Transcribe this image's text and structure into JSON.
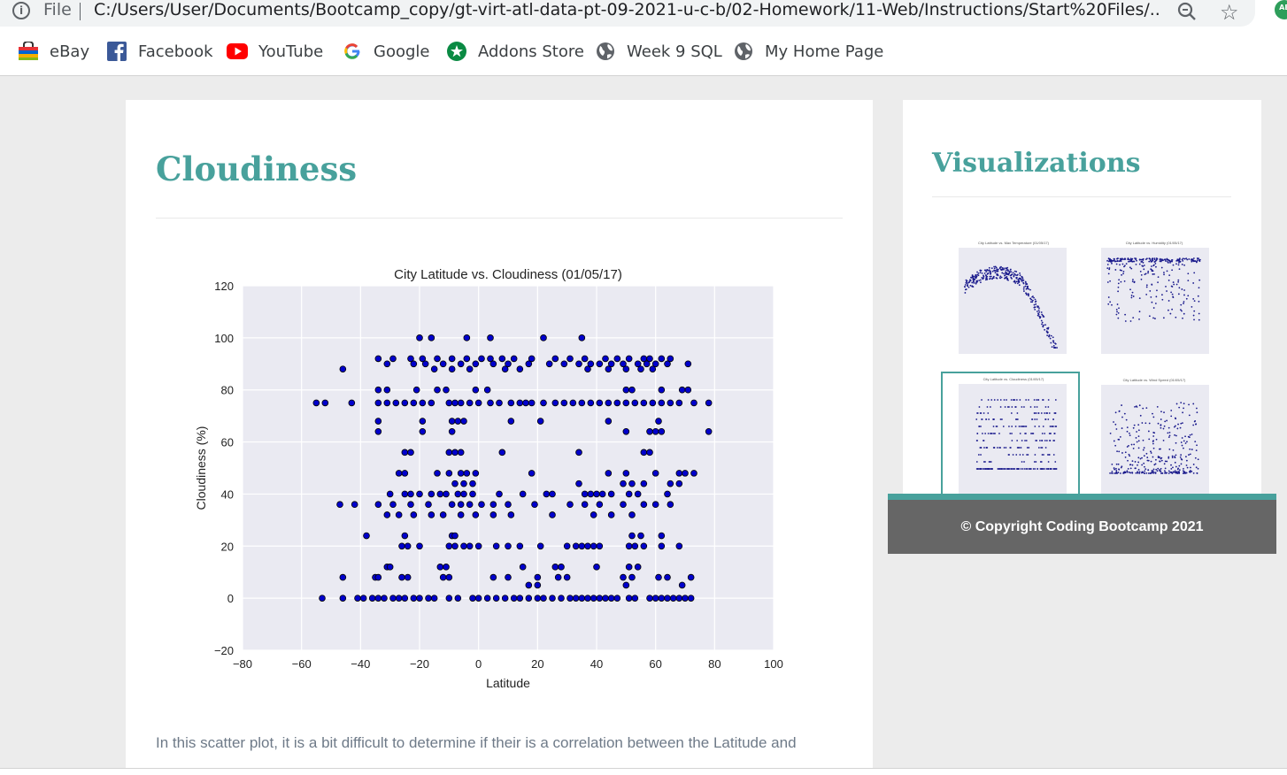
{
  "browser": {
    "file_label": "File",
    "url": "C:/Users/User/Documents/Bootcamp_copy/gt-virt-atl-data-pt-09-2021-u-c-b/02-Homework/11-Web/Instructions/Start%20Files/...",
    "extension_label": "AE",
    "info_icon": "info-icon",
    "star_icon": "star-icon",
    "zoom_icon": "zoom-icon"
  },
  "bookmarks": [
    {
      "label": "eBay",
      "icon": "ebay-icon"
    },
    {
      "label": "Facebook",
      "icon": "facebook-icon"
    },
    {
      "label": "YouTube",
      "icon": "youtube-icon"
    },
    {
      "label": "Google",
      "icon": "google-icon"
    },
    {
      "label": "Addons Store",
      "icon": "addons-icon"
    },
    {
      "label": "Week 9 SQL",
      "icon": "globe-icon"
    },
    {
      "label": "My Home Page",
      "icon": "globe-icon"
    }
  ],
  "main": {
    "title": "Cloudiness",
    "paragraph": "In this scatter plot, it is a bit difficult to determine if their is a correlation between the Latitude and"
  },
  "sidebar": {
    "title": "Visualizations",
    "thumbnails": [
      {
        "title": "City Latitude vs. Max Temperature (01/05/17)"
      },
      {
        "title": "City Latitude vs. Humidity (01/05/17)"
      },
      {
        "title": "City Latitude vs. Cloudiness (01/05/17)",
        "selected": true
      },
      {
        "title": "City Latitude vs. Wind Speed (01/05/17)"
      }
    ]
  },
  "footer": {
    "text": "© Copyright Coding Bootcamp 2021"
  },
  "colors": {
    "accent": "#48a19c",
    "plot_bg": "#eaeaf2",
    "point": "#0000cc",
    "footer_bg": "#666666"
  },
  "chart_data": {
    "type": "scatter",
    "title": "City Latitude vs. Cloudiness (01/05/17)",
    "xlabel": "Latitude",
    "ylabel": "Cloudiness (%)",
    "xlim": [
      -80,
      100
    ],
    "ylim": [
      -20,
      120
    ],
    "xticks": [
      -80,
      -60,
      -40,
      -20,
      0,
      20,
      40,
      60,
      80,
      100
    ],
    "yticks": [
      -20,
      0,
      20,
      40,
      60,
      80,
      100,
      120
    ],
    "grid": true,
    "point_levels": [
      {
        "y": 100,
        "x": [
          -20,
          -16,
          -4,
          4,
          22,
          35
        ]
      },
      {
        "y": 92,
        "x": [
          -34,
          -29,
          -23,
          -19,
          -14,
          -9,
          -4,
          1,
          4,
          8,
          12,
          18,
          26,
          31,
          36,
          43,
          47,
          51,
          56,
          58,
          62,
          65
        ]
      },
      {
        "y": 90,
        "x": [
          -31,
          -22,
          -18,
          -12,
          -6,
          -1,
          5,
          10,
          17,
          24,
          29,
          34,
          38,
          41,
          45,
          49,
          54,
          57,
          60,
          64,
          71
        ]
      },
      {
        "y": 88,
        "x": [
          -46,
          -15,
          -9,
          -3,
          9,
          14,
          37,
          44,
          50,
          55,
          59
        ]
      },
      {
        "y": 80,
        "x": [
          -34,
          -31,
          -21,
          -14,
          -11,
          -1,
          3,
          50,
          52,
          62,
          69,
          71
        ]
      },
      {
        "y": 75,
        "x": [
          -55,
          -52,
          -43,
          -34,
          -31,
          -28,
          -25,
          -22,
          -19,
          -16,
          -10,
          -8,
          -6,
          -3,
          0,
          4,
          7,
          11,
          14,
          16,
          18,
          22,
          26,
          29,
          32,
          35,
          38,
          41,
          44,
          47,
          50,
          53,
          56,
          59,
          62,
          65,
          68,
          73,
          78
        ]
      },
      {
        "y": 68,
        "x": [
          -34,
          -19,
          -9,
          -7,
          -5,
          11,
          21,
          44,
          61
        ]
      },
      {
        "y": 64,
        "x": [
          -34,
          -19,
          -9,
          50,
          58,
          60,
          62,
          78
        ]
      },
      {
        "y": 56,
        "x": [
          -25,
          -23,
          -10,
          -8,
          -6,
          8,
          34,
          56,
          58
        ]
      },
      {
        "y": 48,
        "x": [
          -27,
          -25,
          -14,
          -10,
          -6,
          -4,
          -1,
          18,
          44,
          50,
          60,
          68,
          70,
          73
        ]
      },
      {
        "y": 44,
        "x": [
          -8,
          -5,
          -2,
          34,
          49,
          52,
          56,
          65,
          68
        ]
      },
      {
        "y": 40,
        "x": [
          -30,
          -25,
          -23,
          -20,
          -16,
          -13,
          -11,
          -7,
          -5,
          -2,
          7,
          15,
          23,
          25,
          36,
          38,
          40,
          42,
          45,
          51,
          54,
          64
        ]
      },
      {
        "y": 36,
        "x": [
          -47,
          -42,
          -34,
          -29,
          -23,
          -17,
          -9,
          -6,
          -3,
          1,
          5,
          10,
          19,
          31,
          36,
          41,
          49,
          56,
          60,
          65
        ]
      },
      {
        "y": 32,
        "x": [
          -31,
          -27,
          -22,
          -16,
          -12,
          -6,
          -1,
          5,
          11,
          25,
          39,
          45,
          52
        ]
      },
      {
        "y": 24,
        "x": [
          -38,
          -25,
          -9,
          -8,
          52,
          55,
          62
        ]
      },
      {
        "y": 20,
        "x": [
          -26,
          -24,
          -20,
          -10,
          -8,
          -5,
          -3,
          0,
          6,
          10,
          14,
          21,
          30,
          33,
          35,
          37,
          39,
          41,
          51,
          53,
          56,
          62,
          68
        ]
      },
      {
        "y": 12,
        "x": [
          -31,
          -30,
          -13,
          -11,
          15,
          26,
          28,
          40,
          51,
          54
        ]
      },
      {
        "y": 8,
        "x": [
          -46,
          -35,
          -34,
          -26,
          -24,
          -12,
          -10,
          5,
          10,
          20,
          27,
          30,
          49,
          52,
          61,
          64,
          72
        ]
      },
      {
        "y": 5,
        "x": [
          17,
          20,
          50,
          69
        ]
      },
      {
        "y": 0,
        "x": [
          -53,
          -46,
          -41,
          -39,
          -36,
          -34,
          -32,
          -29,
          -27,
          -25,
          -22,
          -20,
          -17,
          -15,
          -10,
          -7,
          -2,
          0,
          3,
          6,
          9,
          12,
          14,
          17,
          20,
          22,
          25,
          28,
          31,
          33,
          35,
          37,
          39,
          41,
          43,
          45,
          47,
          51,
          53,
          58,
          60,
          62,
          64,
          66,
          68,
          70,
          72
        ]
      }
    ]
  }
}
